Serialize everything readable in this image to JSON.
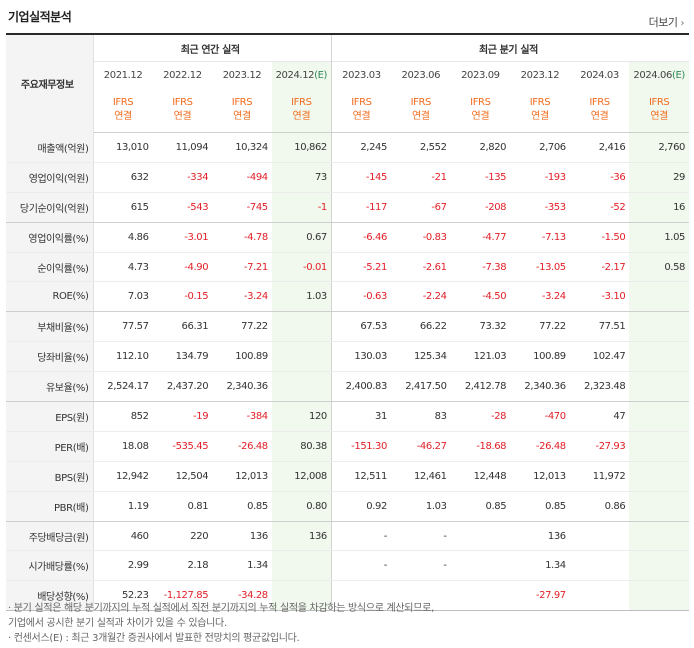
{
  "section_title": "기업실적분석",
  "more_label": "더보기",
  "header": {
    "row_label": "주요재무정보",
    "annual_group": "최근 연간 실적",
    "quarterly_group": "최근 분기 실적",
    "periods": [
      {
        "date": "2021.12",
        "est": ""
      },
      {
        "date": "2022.12",
        "est": ""
      },
      {
        "date": "2023.12",
        "est": ""
      },
      {
        "date": "2024.12",
        "est": "(E)"
      },
      {
        "date": "2023.03",
        "est": ""
      },
      {
        "date": "2023.06",
        "est": ""
      },
      {
        "date": "2023.09",
        "est": ""
      },
      {
        "date": "2023.12",
        "est": ""
      },
      {
        "date": "2024.03",
        "est": ""
      },
      {
        "date": "2024.06",
        "est": "(E)"
      }
    ],
    "ifrs_top": "IFRS",
    "ifrs_bottom": "연결"
  },
  "rows": [
    {
      "label": "매출액(억원)",
      "values": [
        "13,010",
        "11,094",
        "10,324",
        "10,862",
        "2,245",
        "2,552",
        "2,820",
        "2,706",
        "2,416",
        "2,760"
      ]
    },
    {
      "label": "영업이익(억원)",
      "values": [
        "632",
        "-334",
        "-494",
        "73",
        "-145",
        "-21",
        "-135",
        "-193",
        "-36",
        "29"
      ]
    },
    {
      "label": "당기순이익(억원)",
      "values": [
        "615",
        "-543",
        "-745",
        "-1",
        "-117",
        "-67",
        "-208",
        "-353",
        "-52",
        "16"
      ]
    },
    {
      "label": "영업이익률(%)",
      "values": [
        "4.86",
        "-3.01",
        "-4.78",
        "0.67",
        "-6.46",
        "-0.83",
        "-4.77",
        "-7.13",
        "-1.50",
        "1.05"
      ]
    },
    {
      "label": "순이익률(%)",
      "values": [
        "4.73",
        "-4.90",
        "-7.21",
        "-0.01",
        "-5.21",
        "-2.61",
        "-7.38",
        "-13.05",
        "-2.17",
        "0.58"
      ]
    },
    {
      "label": "ROE(%)",
      "values": [
        "7.03",
        "-0.15",
        "-3.24",
        "1.03",
        "-0.63",
        "-2.24",
        "-4.50",
        "-3.24",
        "-3.10",
        ""
      ]
    },
    {
      "label": "부채비율(%)",
      "values": [
        "77.57",
        "66.31",
        "77.22",
        "",
        "67.53",
        "66.22",
        "73.32",
        "77.22",
        "77.51",
        ""
      ]
    },
    {
      "label": "당좌비율(%)",
      "values": [
        "112.10",
        "134.79",
        "100.89",
        "",
        "130.03",
        "125.34",
        "121.03",
        "100.89",
        "102.47",
        ""
      ]
    },
    {
      "label": "유보율(%)",
      "values": [
        "2,524.17",
        "2,437.20",
        "2,340.36",
        "",
        "2,400.83",
        "2,417.50",
        "2,412.78",
        "2,340.36",
        "2,323.48",
        ""
      ]
    },
    {
      "label": "EPS(원)",
      "values": [
        "852",
        "-19",
        "-384",
        "120",
        "31",
        "83",
        "-28",
        "-470",
        "47",
        ""
      ]
    },
    {
      "label": "PER(배)",
      "values": [
        "18.08",
        "-535.45",
        "-26.48",
        "80.38",
        "-151.30",
        "-46.27",
        "-18.68",
        "-26.48",
        "-27.93",
        ""
      ]
    },
    {
      "label": "BPS(원)",
      "values": [
        "12,942",
        "12,504",
        "12,013",
        "12,008",
        "12,511",
        "12,461",
        "12,448",
        "12,013",
        "11,972",
        ""
      ]
    },
    {
      "label": "PBR(배)",
      "values": [
        "1.19",
        "0.81",
        "0.85",
        "0.80",
        "0.92",
        "1.03",
        "0.85",
        "0.85",
        "0.86",
        ""
      ]
    },
    {
      "label": "주당배당금(원)",
      "values": [
        "460",
        "220",
        "136",
        "136",
        "-",
        "-",
        "",
        "136",
        "",
        ""
      ]
    },
    {
      "label": "시가배당률(%)",
      "values": [
        "2.99",
        "2.18",
        "1.34",
        "",
        "-",
        "-",
        "",
        "1.34",
        "",
        ""
      ]
    },
    {
      "label": "배당성향(%)",
      "values": [
        "52.23",
        "-1,127.85",
        "-34.28",
        "",
        "",
        "",
        "",
        "-27.97",
        "",
        ""
      ]
    }
  ],
  "notes": [
    "· 분기 실적은 해당 분기까지의 누적 실적에서 직전 분기까지의 누적 실적을 차감하는 방식으로 계산되므로,",
    "  기업에서 공시한 분기 실적과 차이가 있을 수 있습니다.",
    "· 컨센서스(E) : 최근 3개월간 증권사에서 발표한 전망치의 평균값입니다."
  ],
  "colors": {
    "negative": "#e21e26",
    "ifrs": "#f26b1d",
    "estimate_bg": "#f1f8ed",
    "estimate_mark": "#2e8b57"
  }
}
